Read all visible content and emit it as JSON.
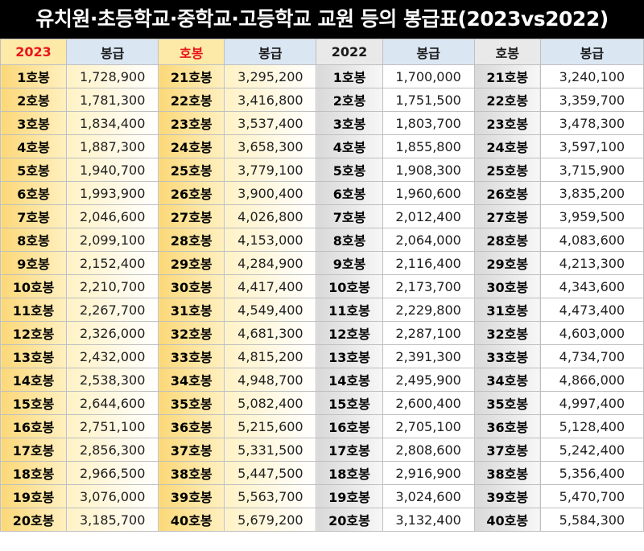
{
  "title": "유치원·초등학교·중학교·고등학교 교원 등의 봉급표(2023vs2022)",
  "header": {
    "y2023": "2023",
    "pay": "봉급",
    "step": "호봉",
    "y2022": "2022"
  },
  "rows": [
    {
      "s1": "1호봉",
      "p1": "1,728,900",
      "s2": "21호봉",
      "p2": "3,295,200",
      "s3": "1호봉",
      "p3": "1,700,000",
      "s4": "21호봉",
      "p4": "3,240,100"
    },
    {
      "s1": "2호봉",
      "p1": "1,781,300",
      "s2": "22호봉",
      "p2": "3,416,800",
      "s3": "2호봉",
      "p3": "1,751,500",
      "s4": "22호봉",
      "p4": "3,359,700"
    },
    {
      "s1": "3호봉",
      "p1": "1,834,400",
      "s2": "23호봉",
      "p2": "3,537,400",
      "s3": "3호봉",
      "p3": "1,803,700",
      "s4": "23호봉",
      "p4": "3,478,300"
    },
    {
      "s1": "4호봉",
      "p1": "1,887,300",
      "s2": "24호봉",
      "p2": "3,658,300",
      "s3": "4호봉",
      "p3": "1,855,800",
      "s4": "24호봉",
      "p4": "3,597,100"
    },
    {
      "s1": "5호봉",
      "p1": "1,940,700",
      "s2": "25호봉",
      "p2": "3,779,100",
      "s3": "5호봉",
      "p3": "1,908,300",
      "s4": "25호봉",
      "p4": "3,715,900"
    },
    {
      "s1": "6호봉",
      "p1": "1,993,900",
      "s2": "26호봉",
      "p2": "3,900,400",
      "s3": "6호봉",
      "p3": "1,960,600",
      "s4": "26호봉",
      "p4": "3,835,200"
    },
    {
      "s1": "7호봉",
      "p1": "2,046,600",
      "s2": "27호봉",
      "p2": "4,026,800",
      "s3": "7호봉",
      "p3": "2,012,400",
      "s4": "27호봉",
      "p4": "3,959,500"
    },
    {
      "s1": "8호봉",
      "p1": "2,099,100",
      "s2": "28호봉",
      "p2": "4,153,000",
      "s3": "8호봉",
      "p3": "2,064,000",
      "s4": "28호봉",
      "p4": "4,083,600"
    },
    {
      "s1": "9호봉",
      "p1": "2,152,400",
      "s2": "29호봉",
      "p2": "4,284,900",
      "s3": "9호봉",
      "p3": "2,116,400",
      "s4": "29호봉",
      "p4": "4,213,300"
    },
    {
      "s1": "10호봉",
      "p1": "2,210,700",
      "s2": "30호봉",
      "p2": "4,417,400",
      "s3": "10호봉",
      "p3": "2,173,700",
      "s4": "30호봉",
      "p4": "4,343,600"
    },
    {
      "s1": "11호봉",
      "p1": "2,267,700",
      "s2": "31호봉",
      "p2": "4,549,400",
      "s3": "11호봉",
      "p3": "2,229,800",
      "s4": "31호봉",
      "p4": "4,473,400"
    },
    {
      "s1": "12호봉",
      "p1": "2,326,000",
      "s2": "32호봉",
      "p2": "4,681,300",
      "s3": "12호봉",
      "p3": "2,287,100",
      "s4": "32호봉",
      "p4": "4,603,000"
    },
    {
      "s1": "13호봉",
      "p1": "2,432,000",
      "s2": "33호봉",
      "p2": "4,815,200",
      "s3": "13호봉",
      "p3": "2,391,300",
      "s4": "33호봉",
      "p4": "4,734,700"
    },
    {
      "s1": "14호봉",
      "p1": "2,538,300",
      "s2": "34호봉",
      "p2": "4,948,700",
      "s3": "14호봉",
      "p3": "2,495,900",
      "s4": "34호봉",
      "p4": "4,866,000"
    },
    {
      "s1": "15호봉",
      "p1": "2,644,600",
      "s2": "35호봉",
      "p2": "5,082,400",
      "s3": "15호봉",
      "p3": "2,600,400",
      "s4": "35호봉",
      "p4": "4,997,400"
    },
    {
      "s1": "16호봉",
      "p1": "2,751,100",
      "s2": "36호봉",
      "p2": "5,215,600",
      "s3": "16호봉",
      "p3": "2,705,100",
      "s4": "36호봉",
      "p4": "5,128,400"
    },
    {
      "s1": "17호봉",
      "p1": "2,856,300",
      "s2": "37호봉",
      "p2": "5,331,500",
      "s3": "17호봉",
      "p3": "2,808,600",
      "s4": "37호봉",
      "p4": "5,242,400"
    },
    {
      "s1": "18호봉",
      "p1": "2,966,500",
      "s2": "38호봉",
      "p2": "5,447,500",
      "s3": "18호봉",
      "p3": "2,916,900",
      "s4": "38호봉",
      "p4": "5,356,400"
    },
    {
      "s1": "19호봉",
      "p1": "3,076,000",
      "s2": "39호봉",
      "p2": "5,563,700",
      "s3": "19호봉",
      "p3": "3,024,600",
      "s4": "39호봉",
      "p4": "5,470,700"
    },
    {
      "s1": "20호봉",
      "p1": "3,185,700",
      "s2": "40호봉",
      "p2": "5,679,200",
      "s3": "20호봉",
      "p3": "3,132,400",
      "s4": "40호봉",
      "p4": "5,584,300"
    }
  ]
}
